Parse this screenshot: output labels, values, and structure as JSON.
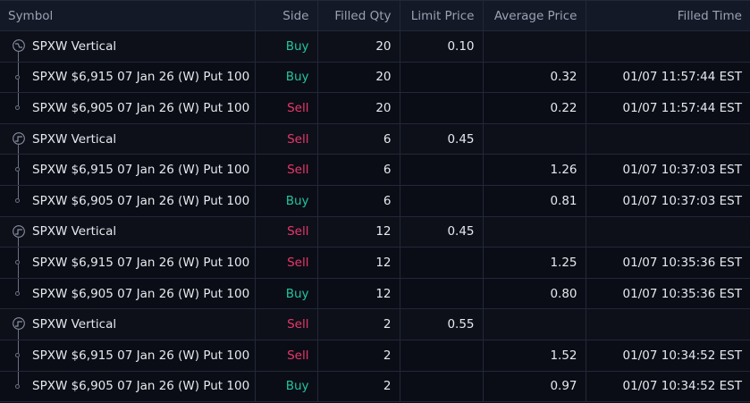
{
  "columns": [
    "Symbol",
    "Side",
    "Filled Qty",
    "Limit Price",
    "Average Price",
    "Filled Time"
  ],
  "colors": {
    "buy": "#22c49e",
    "sell": "#e8386a",
    "background": "#0b0d16",
    "header": "#141927"
  },
  "groups": [
    {
      "icon": "vertical-down-icon",
      "symbol": "SPXW Vertical",
      "side": "Buy",
      "qty": "20",
      "limit": "0.10",
      "legs": [
        {
          "symbol": "SPXW $6,915 07 Jan 26 (W) Put 100",
          "side": "Buy",
          "qty": "20",
          "avg": "0.32",
          "time": "01/07 11:57:44 EST"
        },
        {
          "symbol": "SPXW $6,905 07 Jan 26 (W) Put 100",
          "side": "Sell",
          "qty": "20",
          "avg": "0.22",
          "time": "01/07 11:57:44 EST"
        }
      ]
    },
    {
      "icon": "vertical-up-icon",
      "symbol": "SPXW Vertical",
      "side": "Sell",
      "qty": "6",
      "limit": "0.45",
      "legs": [
        {
          "symbol": "SPXW $6,915 07 Jan 26 (W) Put 100",
          "side": "Sell",
          "qty": "6",
          "avg": "1.26",
          "time": "01/07 10:37:03 EST"
        },
        {
          "symbol": "SPXW $6,905 07 Jan 26 (W) Put 100",
          "side": "Buy",
          "qty": "6",
          "avg": "0.81",
          "time": "01/07 10:37:03 EST"
        }
      ]
    },
    {
      "icon": "vertical-up-icon",
      "symbol": "SPXW Vertical",
      "side": "Sell",
      "qty": "12",
      "limit": "0.45",
      "legs": [
        {
          "symbol": "SPXW $6,915 07 Jan 26 (W) Put 100",
          "side": "Sell",
          "qty": "12",
          "avg": "1.25",
          "time": "01/07 10:35:36 EST"
        },
        {
          "symbol": "SPXW $6,905 07 Jan 26 (W) Put 100",
          "side": "Buy",
          "qty": "12",
          "avg": "0.80",
          "time": "01/07 10:35:36 EST"
        }
      ]
    },
    {
      "icon": "vertical-up-icon",
      "symbol": "SPXW Vertical",
      "side": "Sell",
      "qty": "2",
      "limit": "0.55",
      "legs": [
        {
          "symbol": "SPXW $6,915 07 Jan 26 (W) Put 100",
          "side": "Sell",
          "qty": "2",
          "avg": "1.52",
          "time": "01/07 10:34:52 EST"
        },
        {
          "symbol": "SPXW $6,905 07 Jan 26 (W) Put 100",
          "side": "Buy",
          "qty": "2",
          "avg": "0.97",
          "time": "01/07 10:34:52 EST"
        }
      ]
    }
  ]
}
